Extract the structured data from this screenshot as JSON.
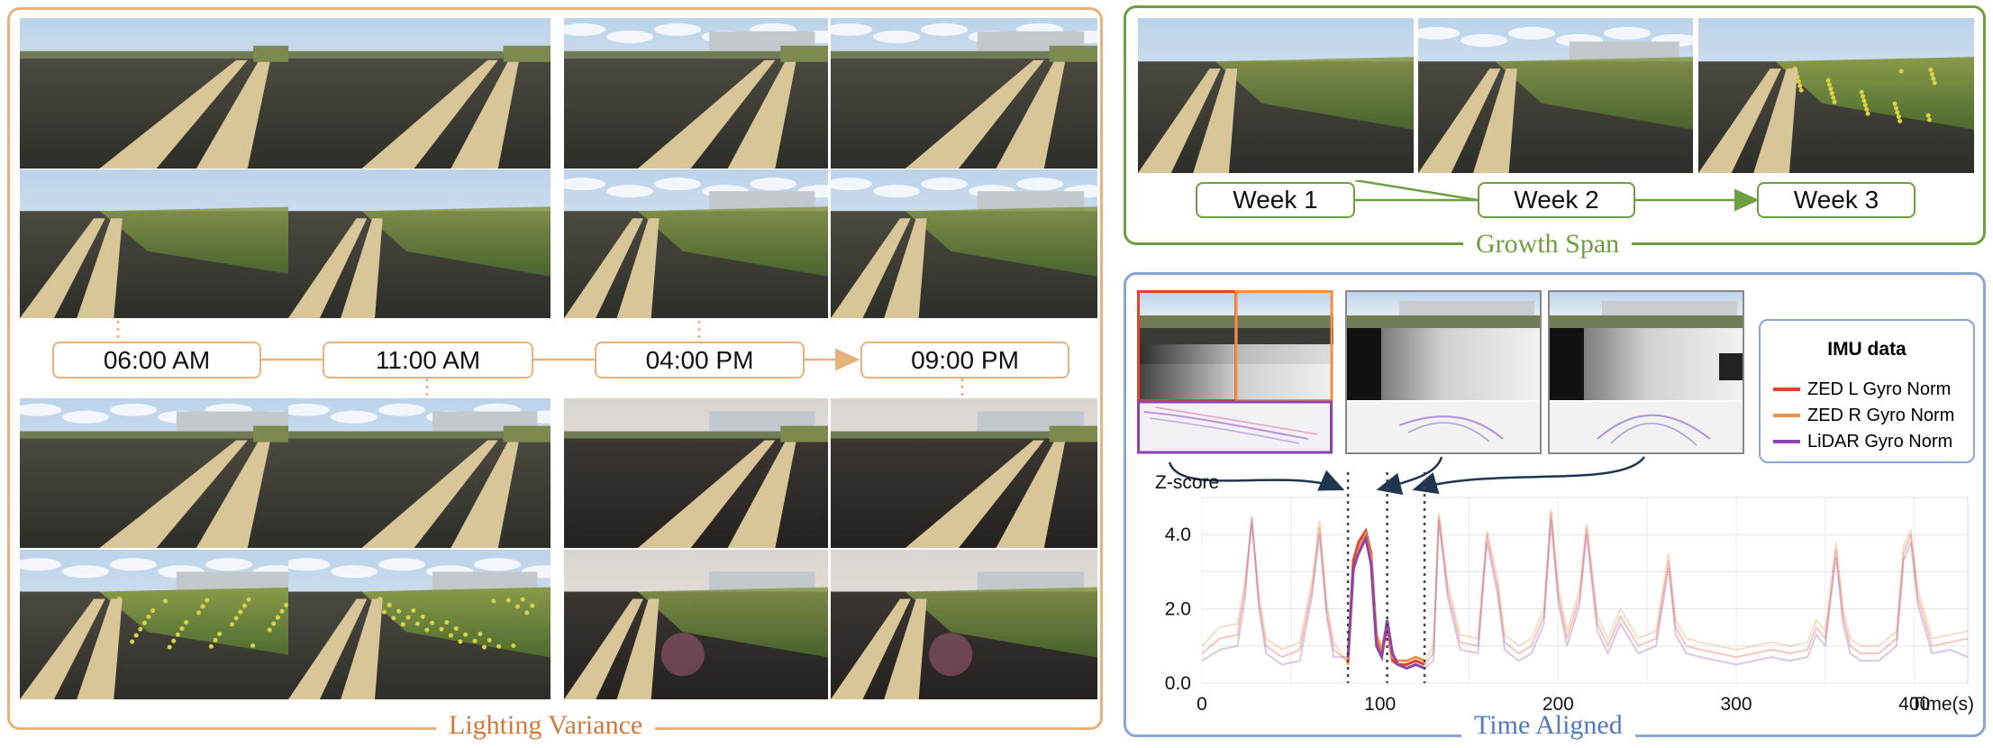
{
  "lighting": {
    "title": "Lighting Variance",
    "times": [
      "06:00 AM",
      "11:00 AM",
      "04:00 PM",
      "09:00 PM"
    ],
    "accent": "#e8b27a"
  },
  "growth": {
    "title": "Growth Span",
    "weeks": [
      "Week 1",
      "Week 2",
      "Week 3"
    ],
    "accent": "#6ea040"
  },
  "time_aligned": {
    "title": "Time Aligned",
    "accent": "#8aa6d8",
    "legend": {
      "title": "IMU data",
      "items": [
        {
          "label": "ZED L Gyro Norm",
          "color": "#e0452b"
        },
        {
          "label": "ZED R Gyro Norm",
          "color": "#f0904a"
        },
        {
          "label": "LiDAR Gyro Norm",
          "color": "#8e44ad"
        }
      ]
    }
  },
  "chart_data": {
    "type": "line",
    "ylabel": "Z-score",
    "xlabel": "Time(s)",
    "xlim": [
      0,
      430
    ],
    "ylim": [
      0,
      5
    ],
    "x_ticks": [
      "0",
      "100",
      "200",
      "300",
      "400"
    ],
    "y_ticks": [
      "0.0",
      "2.0",
      "4.0"
    ],
    "grid": true,
    "highlight_window": [
      82,
      125
    ],
    "dotted_lines": [
      82,
      104,
      125
    ],
    "x": [
      0,
      10,
      20,
      24,
      28,
      32,
      36,
      45,
      55,
      62,
      66,
      70,
      74,
      82,
      85,
      88,
      92,
      95,
      98,
      101,
      104,
      107,
      110,
      115,
      120,
      125,
      130,
      133,
      138,
      145,
      155,
      160,
      166,
      170,
      178,
      185,
      192,
      196,
      200,
      205,
      212,
      216,
      222,
      228,
      235,
      245,
      255,
      262,
      266,
      272,
      280,
      290,
      300,
      310,
      320,
      330,
      340,
      345,
      350,
      356,
      360,
      364,
      370,
      380,
      390,
      394,
      398,
      402,
      410,
      420,
      430
    ],
    "series": [
      {
        "name": "ZED L Gyro Norm",
        "values": [
          0.8,
          1.2,
          1.3,
          2.5,
          4.4,
          2.2,
          1.0,
          0.7,
          0.9,
          2.6,
          4.2,
          2.0,
          0.9,
          0.6,
          3.3,
          3.8,
          4.1,
          3.5,
          1.2,
          0.8,
          1.5,
          0.6,
          0.5,
          0.5,
          0.6,
          0.5,
          0.8,
          4.5,
          2.5,
          1.1,
          1.0,
          4.0,
          2.6,
          1.1,
          0.8,
          1.0,
          1.8,
          4.6,
          2.4,
          1.2,
          2.3,
          4.2,
          1.6,
          1.0,
          1.8,
          1.0,
          1.2,
          3.3,
          1.5,
          1.0,
          0.9,
          0.8,
          0.7,
          0.8,
          0.9,
          0.8,
          0.9,
          1.5,
          1.2,
          3.6,
          1.8,
          1.0,
          0.8,
          0.8,
          1.2,
          3.5,
          4.0,
          2.3,
          1.0,
          1.1,
          1.2
        ]
      },
      {
        "name": "ZED R Gyro Norm",
        "values": [
          1.0,
          1.5,
          1.6,
          2.7,
          4.3,
          2.4,
          1.2,
          0.9,
          1.1,
          2.8,
          4.4,
          2.2,
          1.1,
          0.5,
          3.0,
          3.6,
          4.0,
          3.4,
          1.3,
          0.9,
          1.6,
          0.7,
          0.6,
          0.6,
          0.7,
          0.6,
          1.0,
          4.6,
          2.7,
          1.3,
          1.2,
          4.1,
          2.8,
          1.3,
          1.0,
          1.2,
          2.0,
          4.7,
          2.6,
          1.4,
          2.5,
          4.3,
          1.8,
          1.2,
          2.0,
          1.2,
          1.4,
          3.5,
          1.7,
          1.2,
          1.1,
          1.0,
          0.9,
          1.0,
          1.1,
          1.0,
          1.1,
          1.7,
          1.4,
          3.8,
          2.0,
          1.2,
          1.0,
          1.0,
          1.4,
          3.7,
          4.1,
          2.5,
          1.2,
          1.3,
          1.4
        ]
      },
      {
        "name": "LiDAR Gyro Norm",
        "values": [
          0.6,
          0.9,
          1.0,
          2.2,
          4.5,
          2.0,
          0.8,
          0.5,
          0.6,
          2.4,
          4.0,
          1.8,
          0.7,
          0.7,
          3.1,
          3.5,
          3.9,
          3.2,
          1.0,
          0.7,
          1.7,
          0.8,
          0.5,
          0.4,
          0.5,
          0.4,
          0.6,
          4.4,
          2.3,
          0.9,
          0.8,
          3.8,
          2.4,
          0.9,
          0.6,
          0.8,
          1.6,
          4.4,
          2.2,
          1.0,
          2.1,
          4.0,
          1.4,
          0.8,
          1.6,
          0.8,
          1.0,
          3.1,
          1.3,
          0.8,
          0.7,
          0.6,
          0.5,
          0.6,
          0.7,
          0.6,
          0.7,
          1.3,
          1.0,
          3.4,
          1.6,
          0.8,
          0.6,
          0.6,
          1.0,
          3.3,
          3.8,
          2.1,
          0.8,
          0.9,
          0.7
        ]
      }
    ]
  }
}
